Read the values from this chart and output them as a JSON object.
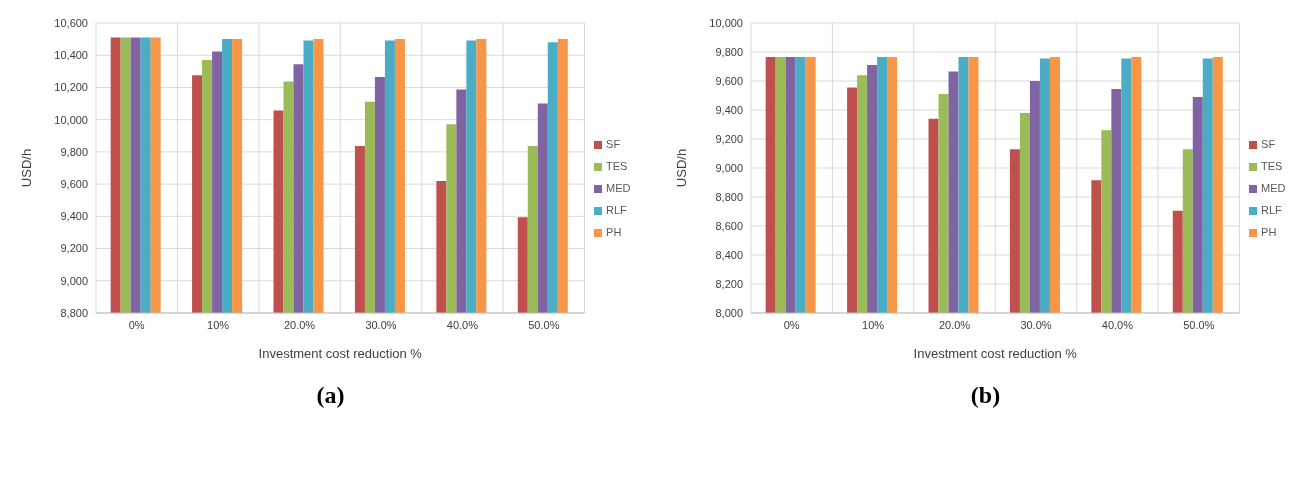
{
  "chart_data": [
    {
      "type": "bar",
      "title": "(a)",
      "xlabel": "Investment cost reduction %",
      "ylabel": "USD/h",
      "categories": [
        "0%",
        "10%",
        "20.0%",
        "30.0%",
        "40.0%",
        "50.0%"
      ],
      "series": [
        {
          "name": "SF",
          "color": "#c0504d",
          "values": [
            10510,
            10276,
            10057,
            9836,
            9619,
            9394
          ]
        },
        {
          "name": "TES",
          "color": "#9bbb59",
          "values": [
            10510,
            10371,
            10237,
            10111,
            9971,
            9836
          ]
        },
        {
          "name": "MED",
          "color": "#8064a2",
          "values": [
            10510,
            10423,
            10344,
            10265,
            10188,
            10100
          ]
        },
        {
          "name": "RLF",
          "color": "#4bacc6",
          "values": [
            10510,
            10500,
            10491,
            10491,
            10491,
            10481
          ]
        },
        {
          "name": "PH",
          "color": "#f79646",
          "values": [
            10510,
            10500,
            10500,
            10500,
            10500,
            10500
          ]
        }
      ],
      "ylim": [
        8800,
        10600
      ],
      "yticks": [
        {
          "value": 8800,
          "label": "8,800"
        },
        {
          "value": 9000,
          "label": "9,000"
        },
        {
          "value": 9200,
          "label": "9,200"
        },
        {
          "value": 9400,
          "label": "9,400"
        },
        {
          "value": 9600,
          "label": "9,600"
        },
        {
          "value": 9800,
          "label": "9,800"
        },
        {
          "value": 10000,
          "label": "10,000"
        },
        {
          "value": 10200,
          "label": "10,200"
        },
        {
          "value": 10400,
          "label": "10,400"
        },
        {
          "value": 10600,
          "label": "10,600"
        }
      ],
      "grid": true,
      "legend": "right"
    },
    {
      "type": "bar",
      "title": "(b)",
      "xlabel": "Investment cost reduction %",
      "ylabel": "USD/h",
      "categories": [
        "0%",
        "10%",
        "20.0%",
        "30.0%",
        "40.0%",
        "50.0%"
      ],
      "series": [
        {
          "name": "SF",
          "color": "#c0504d",
          "values": [
            9765,
            9555,
            9340,
            9130,
            8915,
            8705
          ]
        },
        {
          "name": "TES",
          "color": "#9bbb59",
          "values": [
            9765,
            9640,
            9510,
            9380,
            9260,
            9130
          ]
        },
        {
          "name": "MED",
          "color": "#8064a2",
          "values": [
            9765,
            9710,
            9665,
            9600,
            9545,
            9490
          ]
        },
        {
          "name": "RLF",
          "color": "#4bacc6",
          "values": [
            9765,
            9765,
            9765,
            9755,
            9755,
            9755
          ]
        },
        {
          "name": "PH",
          "color": "#f79646",
          "values": [
            9765,
            9765,
            9765,
            9765,
            9765,
            9765
          ]
        }
      ],
      "ylim": [
        8000,
        10000
      ],
      "yticks": [
        {
          "value": 8000,
          "label": "8,000"
        },
        {
          "value": 8200,
          "label": "8,200"
        },
        {
          "value": 8400,
          "label": "8,400"
        },
        {
          "value": 8600,
          "label": "8,600"
        },
        {
          "value": 8800,
          "label": "8,800"
        },
        {
          "value": 9000,
          "label": "9,000"
        },
        {
          "value": 9200,
          "label": "9,200"
        },
        {
          "value": 9400,
          "label": "9,400"
        },
        {
          "value": 9600,
          "label": "9,600"
        },
        {
          "value": 9800,
          "label": "9,800"
        },
        {
          "value": 10000,
          "label": "10,000"
        }
      ],
      "grid": true,
      "legend": "right"
    }
  ]
}
